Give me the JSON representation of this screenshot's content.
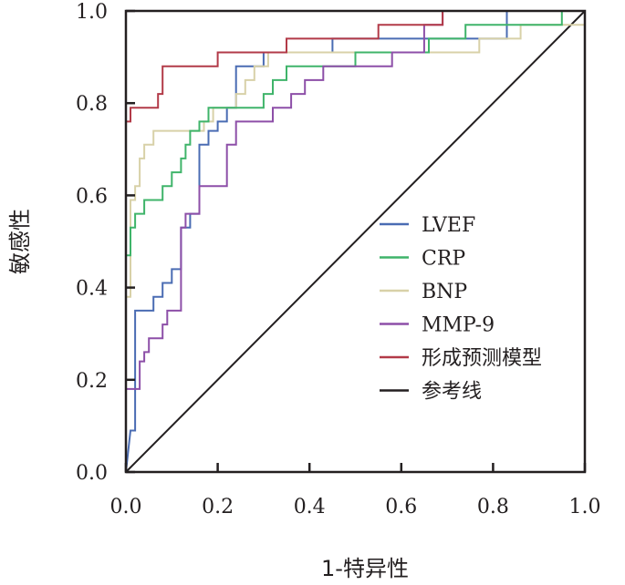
{
  "chart_data": {
    "type": "line",
    "title": "",
    "xlabel": "1-特异性",
    "ylabel": "敏感性",
    "xlim": [
      0,
      1
    ],
    "ylim": [
      0,
      1
    ],
    "xticks": [
      0,
      0.2,
      0.4,
      0.6,
      0.8,
      1.0
    ],
    "yticks": [
      0,
      0.2,
      0.4,
      0.6,
      0.8,
      1.0
    ],
    "xtick_labels": [
      "0.0",
      "0.2",
      "0.4",
      "0.6",
      "0.8",
      "1.0"
    ],
    "ytick_labels": [
      "0.0",
      "0.2",
      "0.4",
      "0.6",
      "0.8",
      "1.0"
    ],
    "grid": false,
    "legend_position": "center-right",
    "series": [
      {
        "name": "LVEF",
        "color": "#4a6cb3",
        "x": [
          0,
          0.01,
          0.02,
          0.02,
          0.04,
          0.06,
          0.06,
          0.08,
          0.08,
          0.1,
          0.1,
          0.12,
          0.12,
          0.14,
          0.14,
          0.16,
          0.16,
          0.18,
          0.18,
          0.2,
          0.2,
          0.22,
          0.22,
          0.24,
          0.24,
          0.3,
          0.3,
          0.36,
          0.36,
          0.45,
          0.45,
          0.6,
          0.6,
          0.83,
          0.83,
          1.0
        ],
        "y": [
          0,
          0.09,
          0.09,
          0.35,
          0.35,
          0.35,
          0.38,
          0.38,
          0.41,
          0.41,
          0.44,
          0.44,
          0.53,
          0.53,
          0.56,
          0.56,
          0.71,
          0.71,
          0.74,
          0.74,
          0.76,
          0.76,
          0.79,
          0.79,
          0.88,
          0.88,
          0.91,
          0.91,
          0.91,
          0.91,
          0.94,
          0.94,
          0.94,
          0.94,
          1.0,
          1.0
        ]
      },
      {
        "name": "CRP",
        "color": "#3fb46a",
        "x": [
          0,
          0,
          0.01,
          0.01,
          0.02,
          0.02,
          0.04,
          0.04,
          0.08,
          0.08,
          0.1,
          0.1,
          0.12,
          0.12,
          0.13,
          0.13,
          0.14,
          0.14,
          0.16,
          0.16,
          0.18,
          0.18,
          0.24,
          0.24,
          0.3,
          0.3,
          0.32,
          0.32,
          0.35,
          0.35,
          0.5,
          0.5,
          0.66,
          0.66,
          0.74,
          0.74,
          0.95,
          0.95,
          1.0
        ],
        "y": [
          0,
          0.47,
          0.47,
          0.53,
          0.53,
          0.56,
          0.56,
          0.59,
          0.59,
          0.62,
          0.62,
          0.65,
          0.65,
          0.68,
          0.68,
          0.71,
          0.71,
          0.74,
          0.74,
          0.76,
          0.76,
          0.79,
          0.79,
          0.79,
          0.79,
          0.82,
          0.82,
          0.85,
          0.85,
          0.88,
          0.88,
          0.91,
          0.91,
          0.94,
          0.94,
          0.97,
          0.97,
          1.0,
          1.0
        ]
      },
      {
        "name": "BNP",
        "color": "#d8d1a8",
        "x": [
          0,
          0,
          0.01,
          0.01,
          0.02,
          0.02,
          0.03,
          0.03,
          0.04,
          0.04,
          0.06,
          0.06,
          0.17,
          0.17,
          0.19,
          0.19,
          0.24,
          0.24,
          0.26,
          0.26,
          0.28,
          0.28,
          0.31,
          0.31,
          0.48,
          0.48,
          0.77,
          0.77,
          0.86,
          0.86,
          1.0
        ],
        "y": [
          0,
          0.38,
          0.38,
          0.59,
          0.59,
          0.62,
          0.62,
          0.68,
          0.68,
          0.71,
          0.71,
          0.74,
          0.74,
          0.76,
          0.76,
          0.79,
          0.79,
          0.82,
          0.82,
          0.85,
          0.85,
          0.88,
          0.88,
          0.91,
          0.91,
          0.91,
          0.91,
          0.94,
          0.94,
          0.97,
          0.97
        ]
      },
      {
        "name": "MMP-9",
        "color": "#8d4fa8",
        "x": [
          0,
          0,
          0.03,
          0.03,
          0.04,
          0.04,
          0.05,
          0.05,
          0.08,
          0.08,
          0.09,
          0.09,
          0.12,
          0.12,
          0.13,
          0.13,
          0.16,
          0.16,
          0.18,
          0.18,
          0.22,
          0.22,
          0.24,
          0.24,
          0.32,
          0.32,
          0.36,
          0.36,
          0.39,
          0.39,
          0.43,
          0.43,
          0.58,
          0.58,
          0.65,
          0.65,
          0.69,
          0.69,
          1.0
        ],
        "y": [
          0,
          0.18,
          0.18,
          0.24,
          0.24,
          0.26,
          0.26,
          0.29,
          0.29,
          0.32,
          0.32,
          0.35,
          0.35,
          0.53,
          0.53,
          0.56,
          0.56,
          0.62,
          0.62,
          0.62,
          0.62,
          0.71,
          0.71,
          0.76,
          0.76,
          0.79,
          0.79,
          0.82,
          0.82,
          0.85,
          0.85,
          0.88,
          0.88,
          0.91,
          0.91,
          0.97,
          0.97,
          1.0,
          1.0
        ]
      },
      {
        "name": "形成预测模型",
        "color": "#b23a48",
        "x": [
          0,
          0,
          0.01,
          0.01,
          0.02,
          0.02,
          0.07,
          0.07,
          0.08,
          0.08,
          0.2,
          0.2,
          0.35,
          0.35,
          0.55,
          0.55,
          0.69,
          0.69,
          1.0
        ],
        "y": [
          0,
          0.76,
          0.76,
          0.79,
          0.79,
          0.79,
          0.79,
          0.82,
          0.82,
          0.88,
          0.88,
          0.91,
          0.91,
          0.94,
          0.94,
          0.97,
          0.97,
          1.0,
          1.0
        ]
      },
      {
        "name": "参考线",
        "color": "#231f20",
        "x": [
          0,
          1
        ],
        "y": [
          0,
          1
        ]
      }
    ]
  }
}
